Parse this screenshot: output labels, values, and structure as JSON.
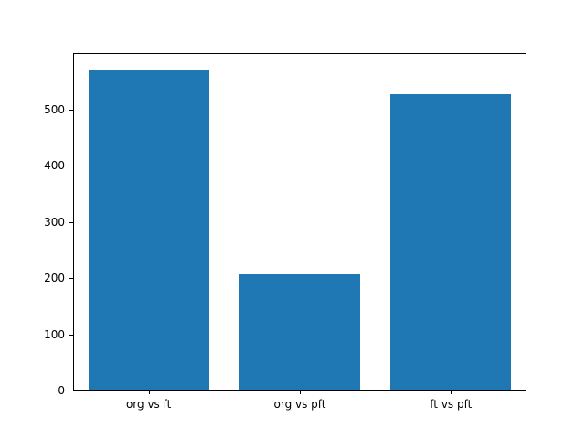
{
  "chart_data": {
    "type": "bar",
    "categories": [
      "org vs ft",
      "org vs pft",
      "ft vs pft"
    ],
    "values": [
      570,
      207,
      527
    ],
    "title": "",
    "xlabel": "",
    "ylabel": "",
    "ylim": [
      0,
      600
    ],
    "yticks": [
      0,
      100,
      200,
      300,
      400,
      500
    ],
    "bar_color": "#1f77b4",
    "bar_width_fraction": 0.8,
    "grid": false,
    "legend": "none"
  },
  "figure": {
    "background": "#ffffff",
    "axes_edge_color": "#000000"
  }
}
